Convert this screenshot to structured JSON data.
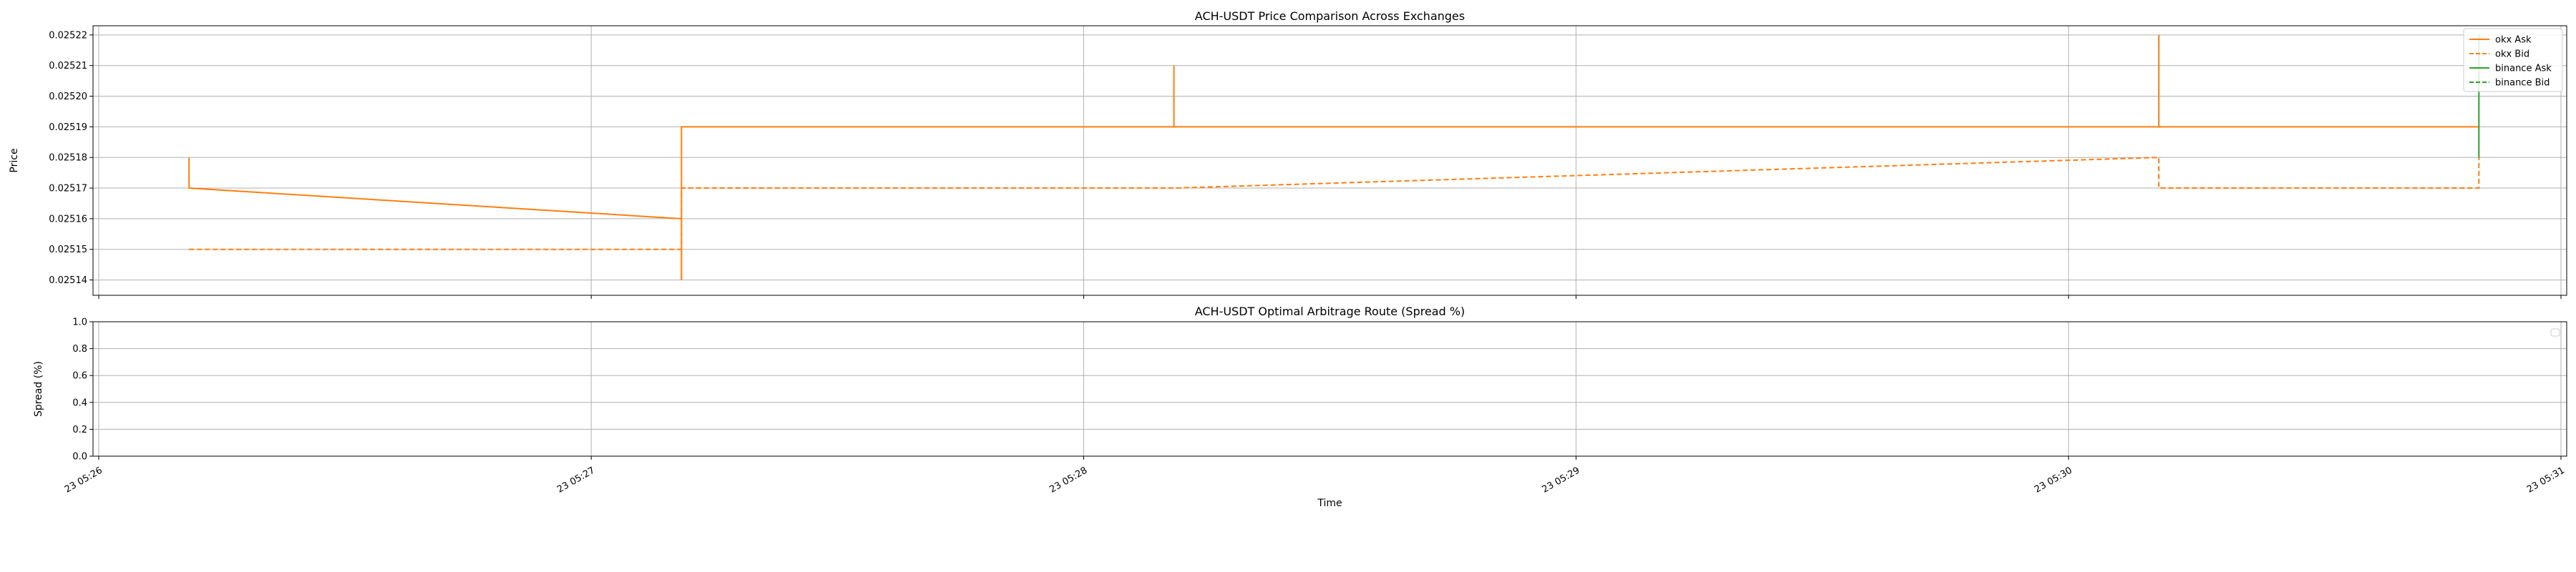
{
  "chart_data": [
    {
      "type": "line",
      "title": "ACH-USDT Price Comparison Across Exchanges",
      "ylabel": "Price",
      "xlabel": "",
      "grid": true,
      "legend_position": "top-right",
      "xlim": [
        "05:26:00",
        "05:31:00"
      ],
      "ylim": [
        0.025135,
        0.025223
      ],
      "y_ticks": [
        "0.02514",
        "0.02515",
        "0.02516",
        "0.02517",
        "0.02518",
        "0.02519",
        "0.02520",
        "0.02521",
        "0.02522"
      ],
      "x_ticks": [
        "23 05:26",
        "23 05:27",
        "23 05:28",
        "23 05:29",
        "23 05:30",
        "23 05:31"
      ],
      "series": [
        {
          "name": "okx Ask",
          "color": "#ff7f0e",
          "dash": "solid",
          "points": [
            [
              "05:26:11",
              0.02518
            ],
            [
              "05:26:11",
              0.02517
            ],
            [
              "05:27:11",
              0.02516
            ],
            [
              "05:27:11",
              0.02514
            ],
            [
              "05:27:11",
              0.02519
            ],
            [
              "05:28:11",
              0.02519
            ],
            [
              "05:28:11",
              0.02521
            ],
            [
              "05:28:11",
              0.02519
            ],
            [
              "05:30:11",
              0.02519
            ],
            [
              "05:30:11",
              0.02522
            ],
            [
              "05:30:11",
              0.02519
            ],
            [
              "05:30:50",
              0.02519
            ]
          ]
        },
        {
          "name": "okx Bid",
          "color": "#ff7f0e",
          "dash": "dashed",
          "points": [
            [
              "05:26:11",
              0.02515
            ],
            [
              "05:27:11",
              0.02515
            ],
            [
              "05:27:11",
              0.02514
            ],
            [
              "05:27:11",
              0.02517
            ],
            [
              "05:28:11",
              0.02517
            ],
            [
              "05:30:11",
              0.02518
            ],
            [
              "05:30:11",
              0.02517
            ],
            [
              "05:30:50",
              0.02517
            ],
            [
              "05:30:50",
              0.02518
            ]
          ]
        },
        {
          "name": "binance Ask",
          "color": "#2ca02c",
          "dash": "solid",
          "points": [
            [
              "05:30:50",
              0.02518
            ],
            [
              "05:30:50",
              0.02522
            ]
          ]
        },
        {
          "name": "binance Bid",
          "color": "#2ca02c",
          "dash": "dashed",
          "points": []
        }
      ]
    },
    {
      "type": "line",
      "title": "ACH-USDT Optimal Arbitrage Route (Spread %)",
      "ylabel": "Spread (%)",
      "xlabel": "Time",
      "grid": true,
      "ylim": [
        0.0,
        1.0
      ],
      "y_ticks": [
        "0.0",
        "0.2",
        "0.4",
        "0.6",
        "0.8",
        "1.0"
      ],
      "x_ticks": [
        "23 05:26",
        "23 05:27",
        "23 05:28",
        "23 05:29",
        "23 05:30",
        "23 05:31"
      ],
      "series": []
    }
  ]
}
